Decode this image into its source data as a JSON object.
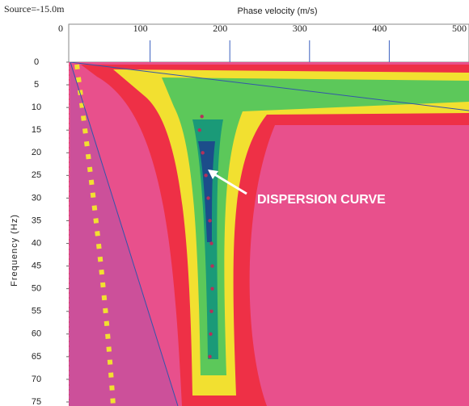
{
  "header": {
    "source": "Source=-15.0m"
  },
  "chart_data": {
    "type": "scatter",
    "x_axis_label": "Phase velocity (m/s)",
    "y_axis_label": "Frequency (Hz)",
    "annotation": "DISPERSION CURVE",
    "xlim": [
      0,
      500
    ],
    "xticks": [
      0,
      100,
      200,
      300,
      400,
      500
    ],
    "ylim": [
      0,
      75
    ],
    "yticks": [
      0,
      5,
      10,
      15,
      20,
      25,
      30,
      35,
      40,
      45,
      50,
      55,
      60,
      65,
      70,
      75
    ],
    "color": "#b5305a",
    "x": [
      165,
      162,
      166,
      170,
      173,
      175,
      177,
      178,
      178,
      177,
      176,
      175
    ],
    "y": [
      12,
      15,
      20,
      25,
      30,
      35,
      40,
      45,
      50,
      55,
      60,
      65
    ]
  }
}
